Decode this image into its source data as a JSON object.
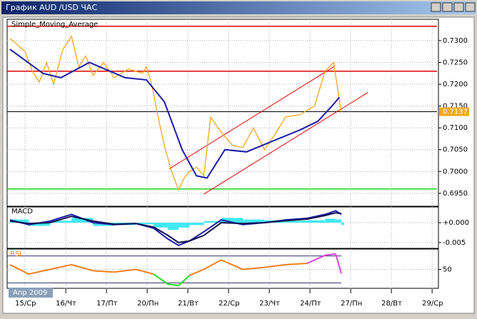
{
  "window_title": "График AUD /USD ЧАС",
  "period_label": "Апр 2009",
  "chart_data": [
    {
      "type": "price",
      "xlim": [
        -0.37,
        10.12
      ],
      "xticks": [
        {
          "value": 0,
          "label": "15/Ср"
        },
        {
          "value": 1,
          "label": "16/Чт"
        },
        {
          "value": 2,
          "label": "17/Пт"
        },
        {
          "value": 3,
          "label": "20/Пн"
        },
        {
          "value": 4,
          "label": "21/Вт"
        },
        {
          "value": 5,
          "label": "22/Ср"
        },
        {
          "value": 6,
          "label": "23/Чт"
        },
        {
          "value": 7,
          "label": "24/Пт"
        },
        {
          "value": 8,
          "label": "27/Пн"
        },
        {
          "value": 9,
          "label": "28/Вт"
        },
        {
          "value": 10,
          "label": "29/Ср"
        }
      ],
      "ylim": [
        0.6922,
        0.7344
      ],
      "yticks": [
        {
          "value": 0.695,
          "label": "0.6950"
        },
        {
          "value": 0.7,
          "label": "0.7000"
        },
        {
          "value": 0.705,
          "label": "0.7050"
        },
        {
          "value": 0.71,
          "label": "0.7100"
        },
        {
          "value": 0.715,
          "label": "0.7150"
        },
        {
          "value": 0.72,
          "label": "0.7200"
        },
        {
          "value": 0.725,
          "label": "0.7250"
        },
        {
          "value": 0.73,
          "label": "0.7300"
        }
      ],
      "grid": true,
      "series": [
        {
          "color": "#f0a820",
          "x": [
            -0.37,
            -0.18,
            0,
            0.18,
            0.35,
            0.53,
            0.7,
            0.93,
            1.14,
            1.32,
            1.49,
            1.67,
            1.93,
            2.19,
            2.54,
            2.89,
            2.98,
            3.11,
            3.28,
            3.42,
            3.6,
            3.77,
            3.91,
            4.04,
            4.21,
            4.39,
            4.56,
            4.74,
            4.91,
            5.09,
            5.35,
            5.61,
            5.88,
            6.14,
            6.4,
            6.75,
            7.11,
            7.37,
            7.58,
            7.72,
            7.77
          ],
          "values": [
            0.7305,
            0.729,
            0.7275,
            0.723,
            0.7205,
            0.725,
            0.72,
            0.728,
            0.731,
            0.724,
            0.7265,
            0.722,
            0.725,
            0.7215,
            0.7235,
            0.7225,
            0.724,
            0.72,
            0.712,
            0.706,
            0.7,
            0.6958,
            0.6985,
            0.7,
            0.701,
            0.699,
            0.7125,
            0.71,
            0.708,
            0.706,
            0.7055,
            0.71,
            0.705,
            0.7085,
            0.7125,
            0.713,
            0.715,
            0.723,
            0.725,
            0.7165,
            0.7137
          ]
        },
        {
          "name": "Simple_Moving_Average",
          "color": "#1c1ca8",
          "x": [
            -0.37,
            0.44,
            0.88,
            1.58,
            2.46,
            2.98,
            3.42,
            3.86,
            4.21,
            4.47,
            4.91,
            5.44,
            5.96,
            6.75,
            7.19,
            7.54,
            7.72
          ],
          "values": [
            0.728,
            0.7225,
            0.7215,
            0.725,
            0.7215,
            0.721,
            0.716,
            0.705,
            0.699,
            0.6985,
            0.705,
            0.7045,
            0.7065,
            0.7095,
            0.7115,
            0.715,
            0.717
          ]
        }
      ],
      "hlines": [
        {
          "value": 0.7333,
          "color": "#e00000"
        },
        {
          "value": 0.723,
          "color": "#e00000"
        },
        {
          "value": 0.696,
          "color": "#20d020"
        }
      ],
      "channel": {
        "color": "#e00000",
        "lines": [
          {
            "x": [
              3.54,
              7.6
            ],
            "values": [
              0.7006,
              0.7241
            ]
          },
          {
            "x": [
              4.39,
              8.42
            ],
            "values": [
              0.6948,
              0.7181
            ]
          }
        ]
      },
      "last_price": {
        "value": 0.7137,
        "label": "0.7137",
        "color": "#f0a820"
      }
    },
    {
      "type": "macd",
      "title": "MACD",
      "x": [
        -0.37,
        0.09,
        0.61,
        1.14,
        1.67,
        2.19,
        2.72,
        3.16,
        3.51,
        3.77,
        4.04,
        4.39,
        4.82,
        5.35,
        5.88,
        6.4,
        6.93,
        7.37,
        7.63,
        7.77
      ],
      "ylim": [
        -0.0061,
        0.0036
      ],
      "yticks": [
        {
          "value": 0,
          "label": "+0.000"
        },
        {
          "value": -0.005,
          "label": "-0.005"
        }
      ],
      "histogram": {
        "color": "#40e8f0",
        "values": [
          0.0008,
          -0.0008,
          0.0005,
          0.0012,
          -0.0008,
          -0.0006,
          -0.0004,
          -0.0012,
          -0.0018,
          -0.0012,
          -0.0006,
          0.0004,
          0.0012,
          0.0008,
          0.0006,
          0.0005,
          0.0006,
          0.001,
          0.0008,
          -0.0006
        ]
      },
      "series": [
        {
          "color": "#1c1ca8",
          "values": [
            0.0007,
            -0.0005,
            0.0004,
            0.0021,
            0,
            -0.0005,
            -0.0002,
            -0.0014,
            -0.0041,
            -0.0057,
            -0.0046,
            -0.0023,
            0.0007,
            -0.0005,
            0,
            0.0007,
            0.0011,
            0.0021,
            0.003,
            0.0021
          ]
        },
        {
          "color": "#101050",
          "values": [
            0.0004,
            -0.0002,
            0,
            0.0016,
            0.0004,
            -0.0004,
            -0.0002,
            -0.0011,
            -0.0032,
            -0.005,
            -0.0046,
            -0.0032,
            0,
            -0.0002,
            0,
            0.0005,
            0.0009,
            0.0018,
            0.0025,
            0.0023
          ]
        }
      ]
    },
    {
      "type": "rsi",
      "title": "RSI",
      "x": [
        -0.37,
        0.09,
        0.61,
        1.14,
        1.67,
        2.19,
        2.72,
        3.16,
        3.51,
        3.77,
        4.04,
        4.39,
        4.82,
        5.35,
        5.88,
        6.4,
        6.93,
        7.37,
        7.63,
        7.77
      ],
      "values": [
        57,
        43,
        50,
        57,
        48,
        46,
        50,
        43,
        28,
        26,
        41,
        50,
        64,
        50,
        53,
        57,
        59,
        71,
        73,
        44
      ],
      "color": "#f08020",
      "low_color": "#20e020",
      "high_color": "#e040e0",
      "levels": [
        30,
        70
      ],
      "ylim": [
        24,
        77
      ],
      "yticks": [
        50
      ]
    }
  ]
}
